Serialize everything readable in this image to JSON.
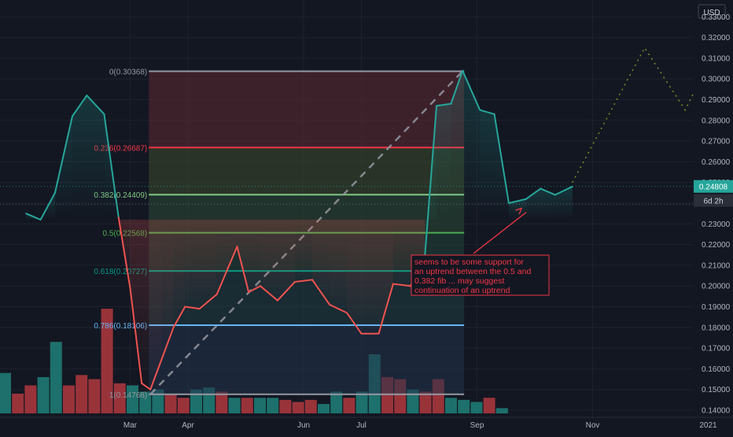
{
  "chart_data": {
    "type": "line",
    "currency": "USD",
    "y_axis": {
      "min": 0.14,
      "max": 0.33,
      "ticks": [
        "0.14000",
        "0.15000",
        "0.16000",
        "0.17000",
        "0.18000",
        "0.19000",
        "0.20000",
        "0.21000",
        "0.22000",
        "0.23000",
        "0.24000",
        "0.25000",
        "0.26000",
        "0.27000",
        "0.28000",
        "0.29000",
        "0.30000",
        "0.31000",
        "0.32000",
        "0.33000"
      ]
    },
    "x_axis": {
      "ticks": [
        {
          "label": "Mar",
          "month": 3.0
        },
        {
          "label": "Apr",
          "month": 4.0
        },
        {
          "label": "Jun",
          "month": 6.0
        },
        {
          "label": "Jul",
          "month": 7.0
        },
        {
          "label": "Sep",
          "month": 9.0
        },
        {
          "label": "Nov",
          "month": 11.0
        },
        {
          "label": "2021",
          "month": 13.0
        }
      ]
    },
    "price_line": [
      [
        1.2,
        0.235
      ],
      [
        1.45,
        0.232
      ],
      [
        1.7,
        0.245
      ],
      [
        2.0,
        0.282
      ],
      [
        2.25,
        0.292
      ],
      [
        2.55,
        0.283
      ],
      [
        2.8,
        0.233
      ],
      [
        3.0,
        0.199
      ],
      [
        3.2,
        0.153
      ],
      [
        3.35,
        0.15
      ],
      [
        3.55,
        0.165
      ],
      [
        3.75,
        0.18
      ],
      [
        3.95,
        0.19
      ],
      [
        4.2,
        0.189
      ],
      [
        4.5,
        0.196
      ],
      [
        4.85,
        0.219
      ],
      [
        5.05,
        0.197
      ],
      [
        5.25,
        0.2
      ],
      [
        5.55,
        0.193
      ],
      [
        5.85,
        0.202
      ],
      [
        6.15,
        0.203
      ],
      [
        6.45,
        0.191
      ],
      [
        6.75,
        0.187
      ],
      [
        7.0,
        0.177
      ],
      [
        7.3,
        0.177
      ],
      [
        7.55,
        0.201
      ],
      [
        7.85,
        0.2
      ],
      [
        8.1,
        0.215
      ],
      [
        8.3,
        0.287
      ],
      [
        8.55,
        0.288
      ],
      [
        8.75,
        0.304
      ],
      [
        9.05,
        0.285
      ],
      [
        9.3,
        0.283
      ],
      [
        9.55,
        0.24
      ],
      [
        9.85,
        0.242
      ],
      [
        10.1,
        0.247
      ],
      [
        10.35,
        0.244
      ],
      [
        10.65,
        0.248
      ]
    ],
    "projection": [
      [
        10.65,
        0.25
      ],
      [
        11.9,
        0.315
      ],
      [
        12.6,
        0.285
      ],
      [
        13.5,
        0.335
      ]
    ],
    "fib_retracement": {
      "levels": [
        {
          "label": "0(0.30368)",
          "ratio": 0,
          "value": 0.30368,
          "color": "#9598a1"
        },
        {
          "label": "0.236(0.26687)",
          "ratio": 0.236,
          "value": 0.26687,
          "color": "#f23645"
        },
        {
          "label": "0.382(0.24409)",
          "ratio": 0.382,
          "value": 0.24409,
          "color": "#81c784"
        },
        {
          "label": "0.5(0.22568)",
          "ratio": 0.5,
          "value": 0.22568,
          "color": "#4caf50"
        },
        {
          "label": "0.618(0.20727)",
          "ratio": 0.618,
          "value": 0.20727,
          "color": "#089981"
        },
        {
          "label": "0.786(0.18106)",
          "ratio": 0.786,
          "value": 0.18106,
          "color": "#64b5f6"
        },
        {
          "label": "1(0.14768)",
          "ratio": 1,
          "value": 0.14768,
          "color": "#9598a1"
        }
      ],
      "start": {
        "month": 3.35,
        "value": 0.14768
      },
      "end": {
        "month": 8.75,
        "value": 0.30368
      }
    },
    "current_price_label": "0.24808",
    "current_price_value": 0.24808,
    "countdown_label": "6d 2h",
    "countdown_value": 0.2394,
    "annotation": "seems to be some support for an uptrend between the 0.5 and 0.382 fib ... may suggest continuation of an uptrend",
    "volume": [
      {
        "v": 0.158,
        "up": true
      },
      {
        "v": 0.148,
        "up": false
      },
      {
        "v": 0.152,
        "up": false
      },
      {
        "v": 0.156,
        "up": true
      },
      {
        "v": 0.173,
        "up": true
      },
      {
        "v": 0.152,
        "up": false
      },
      {
        "v": 0.157,
        "up": false
      },
      {
        "v": 0.155,
        "up": false
      },
      {
        "v": 0.189,
        "up": false
      },
      {
        "v": 0.153,
        "up": false
      },
      {
        "v": 0.152,
        "up": true
      },
      {
        "v": 0.149,
        "up": true
      },
      {
        "v": 0.15,
        "up": true
      },
      {
        "v": 0.148,
        "up": false
      },
      {
        "v": 0.146,
        "up": false
      },
      {
        "v": 0.15,
        "up": true
      },
      {
        "v": 0.151,
        "up": true
      },
      {
        "v": 0.149,
        "up": false
      },
      {
        "v": 0.146,
        "up": true
      },
      {
        "v": 0.146,
        "up": false
      },
      {
        "v": 0.146,
        "up": true
      },
      {
        "v": 0.146,
        "up": true
      },
      {
        "v": 0.145,
        "up": false
      },
      {
        "v": 0.144,
        "up": false
      },
      {
        "v": 0.145,
        "up": false
      },
      {
        "v": 0.143,
        "up": true
      },
      {
        "v": 0.149,
        "up": true
      },
      {
        "v": 0.146,
        "up": false
      },
      {
        "v": 0.149,
        "up": true
      },
      {
        "v": 0.167,
        "up": true
      },
      {
        "v": 0.156,
        "up": false
      },
      {
        "v": 0.155,
        "up": false
      },
      {
        "v": 0.15,
        "up": true
      },
      {
        "v": 0.149,
        "up": false
      },
      {
        "v": 0.155,
        "up": false
      },
      {
        "v": 0.146,
        "up": true
      },
      {
        "v": 0.145,
        "up": true
      },
      {
        "v": 0.144,
        "up": true
      },
      {
        "v": 0.146,
        "up": false
      },
      {
        "v": 0.141,
        "up": true
      }
    ],
    "colors": {
      "background": "#131722",
      "grid": "#1e222d",
      "line_up": "#26a69a",
      "line_down": "#ef5350",
      "volume_up": "#1f7a73",
      "volume_down": "#a8363d",
      "price_badge": "#26a69a",
      "countdown_badge": "#2a2e39",
      "annotation": "#f23645",
      "projection": "#6b8e23",
      "trend_line": "#9598a1"
    }
  }
}
